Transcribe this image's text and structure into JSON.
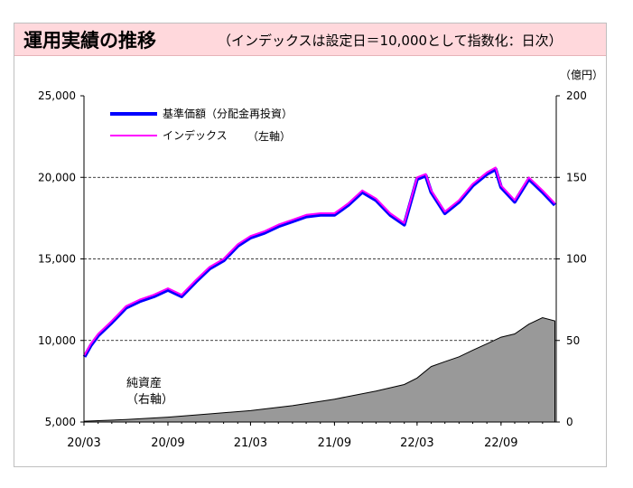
{
  "title": "運用実績の推移",
  "subtitle": "（インデックスは設定日＝10,000として指数化：日次）",
  "chart_data": {
    "type": "line",
    "y_unit_right": "（億円）",
    "x_ticks": [
      "20/03",
      "20/09",
      "21/03",
      "21/09",
      "22/03",
      "22/09"
    ],
    "y_left_ticks": [
      "25,000",
      "20,000",
      "15,000",
      "10,000",
      "5,000"
    ],
    "y_right_ticks": [
      "200",
      "150",
      "100",
      "50",
      "0"
    ],
    "ylim_left": [
      5000,
      25000
    ],
    "ylim_right": [
      0,
      200
    ],
    "grid": "horizontal dashed",
    "legend_position": "top-left",
    "legend": {
      "nav_label": "基準価額（分配金再投資）",
      "index_label": "インデックス",
      "axis_note": "（左軸）"
    },
    "area_label": [
      "純資産",
      "（右軸）"
    ],
    "colors": {
      "nav": "#0000ff",
      "index": "#ff00ff",
      "net_assets_fill": "#999999",
      "net_assets_line": "#000000"
    },
    "series": [
      {
        "name": "基準価額（分配金再投資）",
        "axis": "left",
        "x": [
          "2020-03-02",
          "2020-03-16",
          "2020-04-01",
          "2020-05-01",
          "2020-06-01",
          "2020-07-01",
          "2020-08-01",
          "2020-09-01",
          "2020-10-01",
          "2020-11-01",
          "2020-12-01",
          "2021-01-01",
          "2021-02-01",
          "2021-03-01",
          "2021-04-01",
          "2021-05-01",
          "2021-06-01",
          "2021-07-01",
          "2021-08-01",
          "2021-09-01",
          "2021-10-01",
          "2021-11-01",
          "2021-12-01",
          "2022-01-01",
          "2022-02-01",
          "2022-03-01",
          "2022-03-20",
          "2022-04-01",
          "2022-05-01",
          "2022-06-01",
          "2022-07-01",
          "2022-08-01",
          "2022-08-20",
          "2022-09-01",
          "2022-10-01",
          "2022-11-01",
          "2022-12-01",
          "2022-12-28"
        ],
        "values": [
          9000,
          9700,
          10300,
          11100,
          12000,
          12400,
          12700,
          13100,
          12700,
          13600,
          14400,
          14900,
          15800,
          16300,
          16600,
          17000,
          17300,
          17600,
          17700,
          17700,
          18300,
          19100,
          18600,
          17700,
          17100,
          19900,
          20100,
          19100,
          17800,
          18500,
          19500,
          20200,
          20500,
          19400,
          18500,
          19900,
          19100,
          18300
        ]
      },
      {
        "name": "インデックス",
        "axis": "left",
        "x": [
          "2020-03-02",
          "2020-03-16",
          "2020-04-01",
          "2020-05-01",
          "2020-06-01",
          "2020-07-01",
          "2020-08-01",
          "2020-09-01",
          "2020-10-01",
          "2020-11-01",
          "2020-12-01",
          "2021-01-01",
          "2021-02-01",
          "2021-03-01",
          "2021-04-01",
          "2021-05-01",
          "2021-06-01",
          "2021-07-01",
          "2021-08-01",
          "2021-09-01",
          "2021-10-01",
          "2021-11-01",
          "2021-12-01",
          "2022-01-01",
          "2022-02-01",
          "2022-03-01",
          "2022-03-20",
          "2022-04-01",
          "2022-05-01",
          "2022-06-01",
          "2022-07-01",
          "2022-08-01",
          "2022-08-20",
          "2022-09-01",
          "2022-10-01",
          "2022-11-01",
          "2022-12-01",
          "2022-12-28"
        ],
        "values": [
          9100,
          9800,
          10400,
          11200,
          12100,
          12500,
          12800,
          13200,
          12800,
          13700,
          14500,
          15000,
          15900,
          16400,
          16700,
          17100,
          17400,
          17700,
          17800,
          17800,
          18400,
          19200,
          18700,
          17800,
          17200,
          20000,
          20200,
          19200,
          17900,
          18600,
          19600,
          20300,
          20600,
          19500,
          18600,
          20000,
          19200,
          18400
        ]
      },
      {
        "name": "純資産",
        "axis": "right",
        "type": "area",
        "x": [
          "2020-03-02",
          "2020-06-01",
          "2020-09-01",
          "2020-12-01",
          "2021-03-01",
          "2021-06-01",
          "2021-09-01",
          "2021-12-01",
          "2022-01-01",
          "2022-02-01",
          "2022-03-01",
          "2022-04-01",
          "2022-05-01",
          "2022-06-01",
          "2022-07-01",
          "2022-08-01",
          "2022-09-01",
          "2022-10-01",
          "2022-11-01",
          "2022-12-01",
          "2022-12-28"
        ],
        "values": [
          0.5,
          1.5,
          3,
          5,
          7,
          10,
          14,
          19,
          21,
          23,
          27,
          34,
          37,
          40,
          44,
          48,
          52,
          54,
          60,
          64,
          62
        ]
      }
    ]
  }
}
